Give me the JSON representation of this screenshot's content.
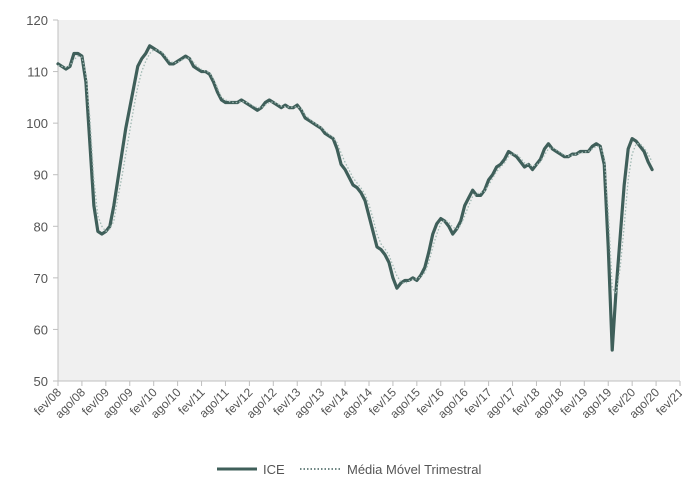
{
  "chart_data": {
    "type": "line",
    "title": "",
    "xlabel": "",
    "ylabel": "",
    "ylim": [
      50,
      120
    ],
    "yticks": [
      50,
      60,
      70,
      80,
      90,
      100,
      110,
      120
    ],
    "x_start": "fev/08",
    "x_end": "fev/21",
    "x_ticks": [
      "fev/08",
      "ago/08",
      "fev/09",
      "ago/09",
      "fev/10",
      "ago/10",
      "fev/11",
      "ago/11",
      "fev/12",
      "ago/12",
      "fev/13",
      "ago/13",
      "fev/14",
      "ago/14",
      "fev/15",
      "ago/15",
      "fev/16",
      "ago/16",
      "fev/17",
      "ago/17",
      "fev/18",
      "ago/18",
      "fev/19",
      "ago/19",
      "fev/20",
      "ago/20",
      "fev/21"
    ],
    "grid": false,
    "legend_position": "bottom",
    "colors": {
      "plot_bg": "#f0f0f0",
      "line": "#3f5f5a",
      "dotted": "#9fb8b2",
      "axis": "#bfbfbf",
      "text": "#555555"
    },
    "series": [
      {
        "name": "ICE",
        "style": "solid",
        "values": [
          111.5,
          111.0,
          110.5,
          111.0,
          113.5,
          113.5,
          113.0,
          108.0,
          96.0,
          84.0,
          79.0,
          78.5,
          79.0,
          80.0,
          84.0,
          89.0,
          94.0,
          99.0,
          103.0,
          107.0,
          111.0,
          112.5,
          113.5,
          115.0,
          114.5,
          114.0,
          113.5,
          112.5,
          111.5,
          111.5,
          112.0,
          112.5,
          113.0,
          112.5,
          111.0,
          110.5,
          110.0,
          110.0,
          109.5,
          108.0,
          106.0,
          104.5,
          104.0,
          104.0,
          104.0,
          104.0,
          104.5,
          104.0,
          103.5,
          103.0,
          102.5,
          103.0,
          104.0,
          104.5,
          104.0,
          103.5,
          103.0,
          103.5,
          103.0,
          103.0,
          103.5,
          102.5,
          101.0,
          100.5,
          100.0,
          99.5,
          99.0,
          98.0,
          97.5,
          97.0,
          95.0,
          92.0,
          91.0,
          89.5,
          88.0,
          87.5,
          86.5,
          85.0,
          82.0,
          79.0,
          76.0,
          75.5,
          74.5,
          73.0,
          70.0,
          68.0,
          69.0,
          69.5,
          69.5,
          70.0,
          69.5,
          70.5,
          72.0,
          75.0,
          78.5,
          80.5,
          81.5,
          81.0,
          80.0,
          78.5,
          79.5,
          81.0,
          84.0,
          85.5,
          87.0,
          86.0,
          86.0,
          87.0,
          89.0,
          90.0,
          91.5,
          92.0,
          93.0,
          94.5,
          94.0,
          93.5,
          92.5,
          91.5,
          92.0,
          91.0,
          92.0,
          93.0,
          95.0,
          96.0,
          95.0,
          94.5,
          94.0,
          93.5,
          93.5,
          94.0,
          94.0,
          94.5,
          94.5,
          94.5,
          95.5,
          96.0,
          95.5,
          92.0,
          76.0,
          56.0,
          68.0,
          78.0,
          88.0,
          95.0,
          97.0,
          96.5,
          95.5,
          94.5,
          92.5,
          91.0
        ]
      },
      {
        "name": "Média Móvel Trimestral",
        "style": "dotted",
        "values": [
          111.2,
          111.0,
          110.8,
          111.2,
          112.3,
          113.0,
          112.8,
          109.5,
          101.0,
          89.0,
          82.0,
          80.0,
          79.0,
          79.5,
          81.0,
          85.5,
          89.5,
          94.0,
          98.5,
          103.0,
          107.0,
          110.0,
          112.0,
          113.5,
          114.2,
          114.2,
          113.8,
          113.0,
          112.0,
          111.7,
          111.8,
          112.2,
          112.6,
          112.6,
          111.8,
          110.9,
          110.4,
          110.1,
          109.8,
          108.6,
          106.8,
          105.0,
          104.5,
          104.2,
          104.0,
          104.0,
          104.2,
          104.1,
          103.8,
          103.3,
          103.0,
          103.0,
          103.5,
          104.0,
          104.1,
          103.8,
          103.3,
          103.2,
          103.1,
          103.1,
          103.2,
          102.8,
          101.6,
          100.9,
          100.2,
          99.7,
          99.2,
          98.5,
          97.8,
          97.3,
          96.2,
          94.2,
          92.4,
          90.9,
          89.4,
          88.4,
          87.4,
          86.2,
          84.2,
          81.5,
          78.5,
          76.6,
          75.6,
          74.4,
          72.4,
          70.4,
          69.2,
          68.9,
          69.4,
          69.7,
          69.8,
          70.2,
          71.0,
          73.0,
          76.0,
          78.5,
          80.5,
          81.2,
          80.8,
          79.8,
          79.5,
          80.2,
          82.0,
          84.0,
          85.8,
          86.3,
          86.5,
          86.8,
          88.0,
          89.3,
          90.6,
          91.5,
          92.3,
          93.5,
          94.1,
          94.0,
          93.2,
          92.3,
          92.0,
          91.7,
          91.9,
          92.5,
          93.8,
          95.0,
          95.3,
          94.8,
          94.3,
          93.8,
          93.6,
          93.8,
          94.0,
          94.2,
          94.4,
          94.5,
          95.0,
          95.5,
          95.5,
          93.5,
          83.0,
          68.0,
          67.0,
          72.0,
          80.0,
          89.0,
          94.0,
          96.0,
          96.0,
          95.2,
          94.0,
          92.5
        ]
      }
    ]
  }
}
